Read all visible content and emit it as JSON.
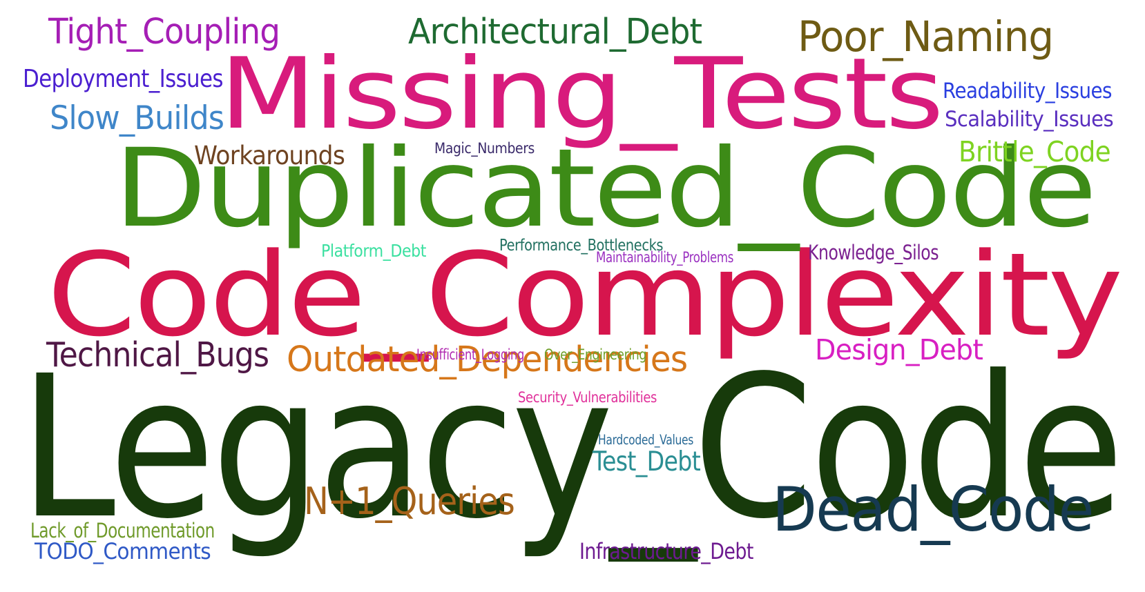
{
  "wordcloud": {
    "words": [
      {
        "text": "Legacy_Code",
        "color": "#173a0b"
      },
      {
        "text": "Code_Complexity",
        "color": "#d6154d"
      },
      {
        "text": "Duplicated_Code",
        "color": "#3d8b17"
      },
      {
        "text": "Missing_Tests",
        "color": "#d81b7c"
      },
      {
        "text": "Dead_Code",
        "color": "#163a51"
      },
      {
        "text": "Poor_Naming",
        "color": "#6e5b14"
      },
      {
        "text": "Architectural_Debt",
        "color": "#1e6a31"
      },
      {
        "text": "Tight_Coupling",
        "color": "#a51eb5"
      },
      {
        "text": "Outdated_Dependencies",
        "color": "#d6771a"
      },
      {
        "text": "N+1_Queries",
        "color": "#a5621a"
      },
      {
        "text": "Technical_Bugs",
        "color": "#4f1745"
      },
      {
        "text": "Slow_Builds",
        "color": "#3f86c9"
      },
      {
        "text": "Design_Debt",
        "color": "#d81fc2"
      },
      {
        "text": "Brittle_Code",
        "color": "#7ed321"
      },
      {
        "text": "Workarounds",
        "color": "#6e4321"
      },
      {
        "text": "Test_Debt",
        "color": "#2a8e93"
      },
      {
        "text": "Deployment_Issues",
        "color": "#4b1fd0"
      },
      {
        "text": "Readability_Issues",
        "color": "#2a3fe0"
      },
      {
        "text": "Scalability_Issues",
        "color": "#5a2fbf"
      },
      {
        "text": "Infrastructure_Debt",
        "color": "#6d1a90"
      },
      {
        "text": "TODO_Comments",
        "color": "#2f59c6"
      },
      {
        "text": "Lack_of_Documentation",
        "color": "#6f9a2a"
      },
      {
        "text": "Knowledge_Silos",
        "color": "#7b2090"
      },
      {
        "text": "Platform_Debt",
        "color": "#3be0a0"
      },
      {
        "text": "Performance_Bottlenecks",
        "color": "#217060"
      },
      {
        "text": "Maintainability_Problems",
        "color": "#9a30c0"
      },
      {
        "text": "Insufficient_Logging",
        "color": "#b02ab0"
      },
      {
        "text": "Over_Engineering",
        "color": "#6fa02a"
      },
      {
        "text": "Security_Vulnerabilities",
        "color": "#e0309a"
      },
      {
        "text": "Magic_Numbers",
        "color": "#3a2a6a"
      },
      {
        "text": "Hardcoded_Values",
        "color": "#2a6a96"
      }
    ]
  }
}
